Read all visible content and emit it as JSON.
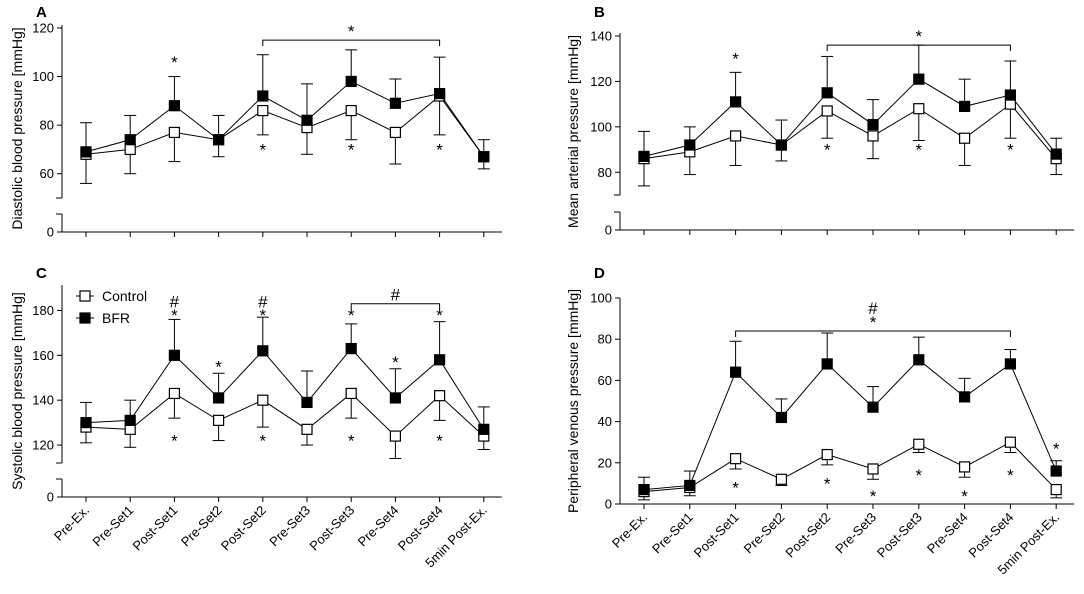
{
  "chart_data": [
    {
      "type": "line",
      "panel": "A",
      "ylabel": "Diastolic blood pressure [mmHg]",
      "ylim": [
        50,
        120
      ],
      "yticks": [
        0,
        60,
        80,
        100,
        120
      ],
      "y_break": true,
      "categories": [
        "Pre-Ex.",
        "Pre-Set1",
        "Post-Set1",
        "Pre-Set2",
        "Post-Set2",
        "Pre-Set3",
        "Post-Set3",
        "Pre-Set4",
        "Post-Set4",
        "5min Post-Ex."
      ],
      "series": [
        {
          "name": "Control",
          "marker": "open-square",
          "values": [
            68,
            70,
            77,
            74,
            86,
            79,
            86,
            77,
            92,
            67
          ],
          "sd": [
            12,
            10,
            12,
            7,
            10,
            11,
            12,
            13,
            16,
            5
          ]
        },
        {
          "name": "BFR",
          "marker": "filled-square",
          "values": [
            69,
            74,
            88,
            74,
            92,
            82,
            98,
            89,
            93,
            67
          ],
          "sd": [
            12,
            10,
            12,
            10,
            17,
            15,
            13,
            10,
            15,
            7
          ]
        }
      ],
      "annotations": [
        {
          "text": "*",
          "category": "Post-Set1",
          "value": 106
        },
        {
          "text": "*",
          "category": "Post-Set2",
          "value": 70
        },
        {
          "text": "*",
          "category": "Post-Set3",
          "value": 70
        },
        {
          "text": "*",
          "category": "Post-Set4",
          "value": 70
        }
      ],
      "brackets": [
        {
          "from": "Post-Set2",
          "to": "Post-Set4",
          "value": 115,
          "label": "*"
        }
      ]
    },
    {
      "type": "line",
      "panel": "B",
      "ylabel": "Mean arterial pressure [mmHg]",
      "ylim": [
        70,
        140
      ],
      "yticks": [
        0,
        80,
        100,
        120,
        140
      ],
      "y_break": true,
      "categories": [
        "Pre-Ex.",
        "Pre-Set1",
        "Post-Set1",
        "Pre-Set2",
        "Post-Set2",
        "Pre-Set3",
        "Post-Set3",
        "Pre-Set4",
        "Post-Set4",
        "5min Post-Ex."
      ],
      "series": [
        {
          "name": "Control",
          "marker": "open-square",
          "values": [
            86,
            89,
            96,
            92,
            107,
            96,
            108,
            95,
            110,
            86
          ],
          "sd": [
            12,
            10,
            13,
            7,
            12,
            10,
            14,
            12,
            15,
            7
          ]
        },
        {
          "name": "BFR",
          "marker": "filled-square",
          "values": [
            87,
            92,
            111,
            92,
            115,
            101,
            121,
            109,
            114,
            88
          ],
          "sd": [
            11,
            8,
            13,
            11,
            16,
            11,
            15,
            12,
            15,
            7
          ]
        }
      ],
      "annotations": [
        {
          "text": "*",
          "category": "Post-Set1",
          "value": 130
        },
        {
          "text": "*",
          "category": "Post-Set2",
          "value": 90
        },
        {
          "text": "*",
          "category": "Post-Set3",
          "value": 90
        },
        {
          "text": "*",
          "category": "Post-Set4",
          "value": 90
        }
      ],
      "brackets": [
        {
          "from": "Post-Set2",
          "to": "Post-Set4",
          "value": 136,
          "label": "*"
        }
      ]
    },
    {
      "type": "line",
      "panel": "C",
      "ylabel": "Systolic blood pressure [mmHg]",
      "ylim": [
        112,
        190
      ],
      "yticks": [
        0,
        120,
        140,
        160,
        180
      ],
      "y_break": true,
      "categories": [
        "Pre-Ex.",
        "Pre-Set1",
        "Post-Set1",
        "Pre-Set2",
        "Post-Set2",
        "Pre-Set3",
        "Post-Set3",
        "Pre-Set4",
        "Post-Set4",
        "5min Post-Ex."
      ],
      "legend": {
        "position": "top-left",
        "entries": [
          "Control",
          "BFR"
        ]
      },
      "series": [
        {
          "name": "Control",
          "marker": "open-square",
          "values": [
            128,
            127,
            143,
            131,
            140,
            127,
            143,
            124,
            142,
            124
          ],
          "sd": [
            7,
            8,
            11,
            9,
            12,
            7,
            11,
            10,
            11,
            6
          ]
        },
        {
          "name": "BFR",
          "marker": "filled-square",
          "values": [
            130,
            131,
            160,
            141,
            162,
            139,
            163,
            141,
            158,
            127
          ],
          "sd": [
            9,
            9,
            16,
            11,
            15,
            14,
            11,
            13,
            17,
            10
          ]
        }
      ],
      "annotations": [
        {
          "text": "*",
          "category": "Post-Set1",
          "value": 178
        },
        {
          "text": "#",
          "category": "Post-Set1",
          "value": 184
        },
        {
          "text": "*",
          "category": "Pre-Set2",
          "value": 155
        },
        {
          "text": "*",
          "category": "Post-Set2",
          "value": 178
        },
        {
          "text": "#",
          "category": "Post-Set2",
          "value": 184
        },
        {
          "text": "*",
          "category": "Post-Set3",
          "value": 178
        },
        {
          "text": "*",
          "category": "Pre-Set4",
          "value": 157
        },
        {
          "text": "*",
          "category": "Post-Set4",
          "value": 178
        },
        {
          "text": "*",
          "category": "Post-Set1",
          "value": 122
        },
        {
          "text": "*",
          "category": "Post-Set2",
          "value": 122
        },
        {
          "text": "*",
          "category": "Post-Set3",
          "value": 122
        },
        {
          "text": "*",
          "category": "Post-Set4",
          "value": 122
        }
      ],
      "brackets": [
        {
          "from": "Post-Set3",
          "to": "Post-Set4",
          "value": 183,
          "label": "#"
        }
      ]
    },
    {
      "type": "line",
      "panel": "D",
      "ylabel": "Peripheral venous pressure [mmHg]",
      "ylim": [
        0,
        100
      ],
      "yticks": [
        0,
        20,
        40,
        60,
        80,
        100
      ],
      "y_break": false,
      "categories": [
        "Pre-Ex.",
        "Pre-Set1",
        "Post-Set1",
        "Pre-Set2",
        "Post-Set2",
        "Pre-Set3",
        "Post-Set3",
        "Pre-Set4",
        "Post-Set4",
        "5min Post-Ex."
      ],
      "series": [
        {
          "name": "Control",
          "marker": "open-square",
          "values": [
            6,
            8,
            22,
            12,
            24,
            17,
            29,
            18,
            30,
            7
          ],
          "sd": [
            4,
            4,
            5,
            3,
            5,
            5,
            4,
            5,
            5,
            4
          ]
        },
        {
          "name": "BFR",
          "marker": "filled-square",
          "values": [
            7,
            9,
            64,
            42,
            68,
            47,
            70,
            52,
            68,
            16
          ],
          "sd": [
            6,
            7,
            15,
            9,
            15,
            10,
            11,
            9,
            7,
            5
          ]
        }
      ],
      "annotations": [
        {
          "text": "*",
          "category": "Post-Set1",
          "value": 8
        },
        {
          "text": "*",
          "category": "Post-Set2",
          "value": 10
        },
        {
          "text": "*",
          "category": "Pre-Set3",
          "value": 4
        },
        {
          "text": "*",
          "category": "Post-Set3",
          "value": 14
        },
        {
          "text": "*",
          "category": "Pre-Set4",
          "value": 4
        },
        {
          "text": "*",
          "category": "Post-Set4",
          "value": 14
        },
        {
          "text": "*",
          "category": "5min Post-Ex.",
          "value": 27
        }
      ],
      "brackets": [
        {
          "from": "Post-Set1",
          "to": "Post-Set4",
          "value": 84,
          "label": "*",
          "label2": "#"
        }
      ]
    }
  ]
}
